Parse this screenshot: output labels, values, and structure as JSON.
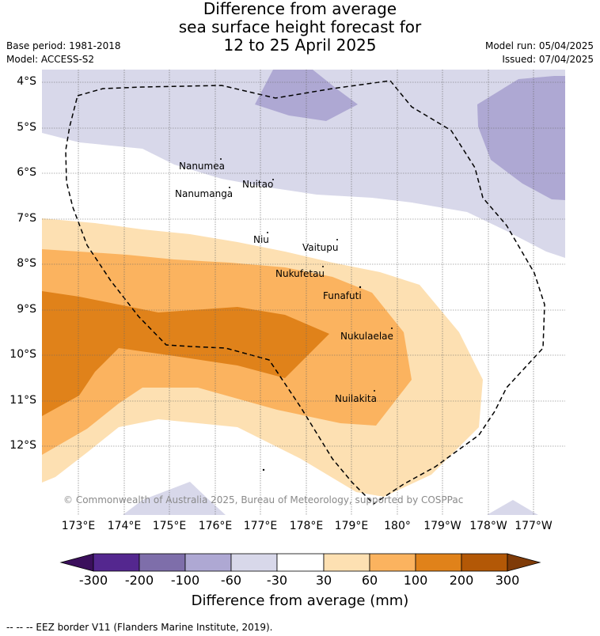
{
  "title": {
    "line1": "Difference from average",
    "line2": "sea surface height forecast for",
    "line3": "12 to 25 April 2025"
  },
  "meta": {
    "base_period": "Base period: 1981-2018",
    "model": "Model: ACCESS-S2",
    "model_run": "Model run: 05/04/2025",
    "issued": "Issued: 07/04/2025"
  },
  "map": {
    "lat_labels": [
      "4°S",
      "5°S",
      "6°S",
      "7°S",
      "8°S",
      "9°S",
      "10°S",
      "11°S",
      "12°S"
    ],
    "lon_labels": [
      "173°E",
      "174°E",
      "175°E",
      "176°E",
      "177°E",
      "178°E",
      "179°E",
      "180°",
      "179°W",
      "178°W",
      "177°W"
    ],
    "islands": [
      "Nanumea",
      "Nanumanga",
      "Nuitao",
      "Niu",
      "Vaitupu",
      "Nukufetau",
      "Funafuti",
      "Nukulaelae",
      "Nuilakita"
    ],
    "copyright": "© Commonwealth of Australia 2025, Bureau of Meteorology, supported by COSPPac"
  },
  "colorbar": {
    "title": "Difference from average (mm)",
    "ticks": [
      "-300",
      "-200",
      "-100",
      "-60",
      "-30",
      "30",
      "60",
      "100",
      "200",
      "300"
    ],
    "colors": {
      "below_-300": "#3b0f5c",
      "-300_to_-200": "#54278f",
      "-200_to_-100": "#7e6eaa",
      "-100_to_-60": "#aea8d3",
      "-60_to_-30": "#d8d8ea",
      "-30_to_30": "#ffffff",
      "30_to_60": "#fde0b2",
      "60_to_100": "#fbb35f",
      "100_to_200": "#e0821a",
      "200_to_300": "#b35806",
      "above_300": "#7f3b08"
    }
  },
  "footer": "--  --  -- EEZ border V11 (Flanders Marine Institute, 2019)."
}
